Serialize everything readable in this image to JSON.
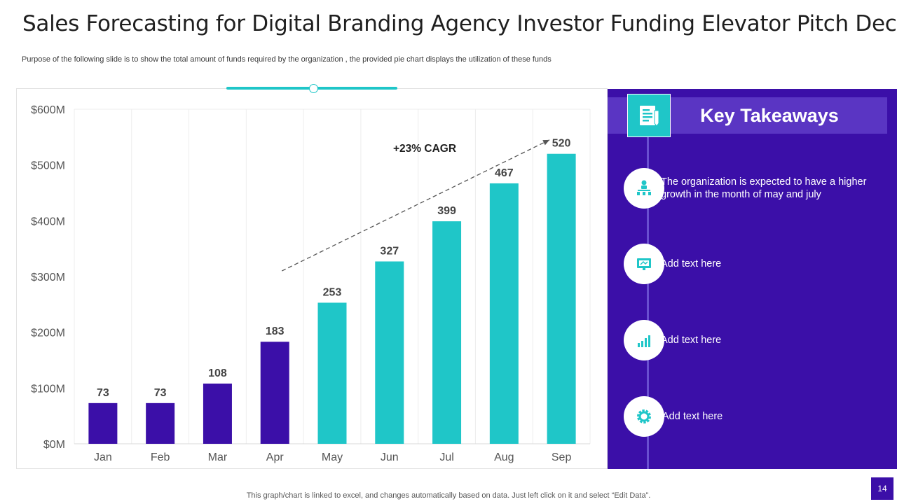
{
  "slide": {
    "title": "Sales Forecasting for Digital Branding Agency Investor Funding Elevator Pitch Deck",
    "subtitle": "Purpose of the following slide is to show the total amount of funds required by the organization , the provided pie chart displays the utilization of these funds",
    "footer": "This graph/chart is linked to excel,  and changes automatically based on data. Just left click on it and select “Edit Data”.",
    "page_number": "14"
  },
  "chart_data": {
    "type": "bar",
    "categories": [
      "Jan",
      "Feb",
      "Mar",
      "Apr",
      "May",
      "Jun",
      "Jul",
      "Aug",
      "Sep"
    ],
    "values": [
      73,
      73,
      108,
      183,
      253,
      327,
      399,
      467,
      520
    ],
    "data_labels": [
      "73",
      "73",
      "108",
      "183",
      "253",
      "327",
      "399",
      "467",
      "520"
    ],
    "bar_colors": [
      "#3b0fa8",
      "#3b0fa8",
      "#3b0fa8",
      "#3b0fa8",
      "#1fc6c8",
      "#1fc6c8",
      "#1fc6c8",
      "#1fc6c8",
      "#1fc6c8"
    ],
    "ylim": [
      0,
      600
    ],
    "yticks": [
      0,
      100,
      200,
      300,
      400,
      500,
      600
    ],
    "ytick_labels": [
      "$0M",
      "$100M",
      "$200M",
      "$300M",
      "$400M",
      "$500M",
      "$600M"
    ],
    "annotation": "+23% CAGR",
    "trend_arrow": {
      "from": {
        "x": "Apr",
        "y": 310
      },
      "to": {
        "x": "Sep",
        "y": 545
      }
    },
    "title": "",
    "xlabel": "",
    "ylabel": ""
  },
  "key_takeaways": {
    "heading": "Key Takeaways",
    "items": [
      {
        "icon": "org-chart-icon",
        "text": "The organization is expected to have a higher growth in the month of may and july"
      },
      {
        "icon": "presentation-icon",
        "text": "Add text here"
      },
      {
        "icon": "bar-chart-icon",
        "text": "Add text here"
      },
      {
        "icon": "gear-icon",
        "text": "Add text here"
      }
    ]
  },
  "colors": {
    "purple": "#3b0fa8",
    "teal": "#1fc6c8"
  }
}
